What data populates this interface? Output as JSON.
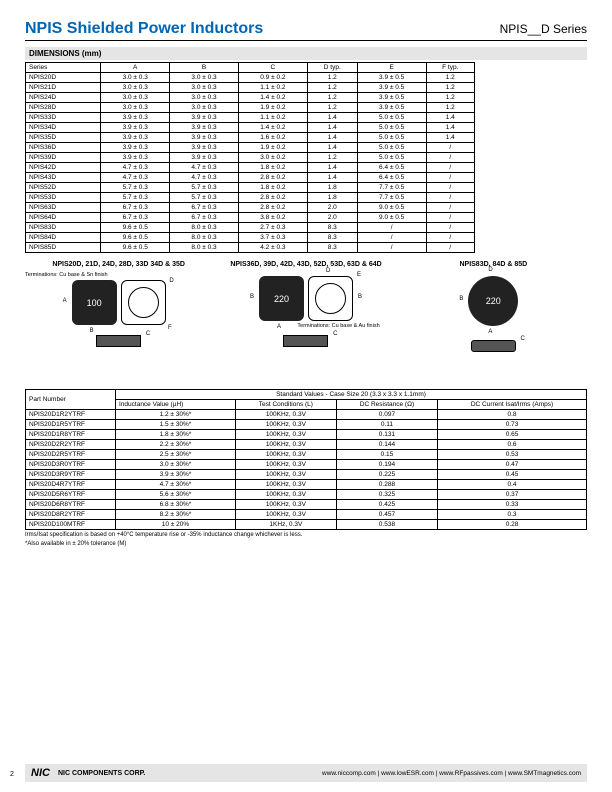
{
  "header": {
    "title": "NPIS Shielded Power Inductors",
    "series": "NPIS__D Series"
  },
  "dim_section": "DIMENSIONS (mm)",
  "dim_headers": [
    "Series",
    "A",
    "B",
    "C",
    "D typ.",
    "E",
    "F typ."
  ],
  "dim_rows": [
    [
      "NPIS20D",
      "3.0 ± 0.3",
      "3.0 ± 0.3",
      "0.9 ± 0.2",
      "1.2",
      "3.9 ± 0.5",
      "1.2"
    ],
    [
      "NPIS21D",
      "3.0 ± 0.3",
      "3.0 ± 0.3",
      "1.1 ± 0.2",
      "1.2",
      "3.9 ± 0.5",
      "1.2"
    ],
    [
      "NPIS24D",
      "3.0 ± 0.3",
      "3.0 ± 0.3",
      "1.4 ± 0.2",
      "1.2",
      "3.9 ± 0.5",
      "1.2"
    ],
    [
      "NPIS28D",
      "3.0 ± 0.3",
      "3.0 ± 0.3",
      "1.9 ± 0.2",
      "1.2",
      "3.9 ± 0.5",
      "1.2"
    ],
    [
      "NPIS33D",
      "3.9 ± 0.3",
      "3.9 ± 0.3",
      "1.1 ± 0.2",
      "1.4",
      "5.0 ± 0.5",
      "1.4"
    ],
    [
      "NPIS34D",
      "3.9 ± 0.3",
      "3.9 ± 0.3",
      "1.4 ± 0.2",
      "1.4",
      "5.0 ± 0.5",
      "1.4"
    ],
    [
      "NPIS35D",
      "3.9 ± 0.3",
      "3.9 ± 0.3",
      "1.6 ± 0.2",
      "1.4",
      "5.0 ± 0.5",
      "1.4"
    ],
    [
      "NPIS36D",
      "3.9 ± 0.3",
      "3.9 ± 0.3",
      "1.9 ± 0.2",
      "1.4",
      "5.0 ± 0.5",
      "/"
    ],
    [
      "NPIS39D",
      "3.9 ± 0.3",
      "3.9 ± 0.3",
      "3.0 ± 0.2",
      "1.2",
      "5.0 ± 0.5",
      "/"
    ],
    [
      "NPIS42D",
      "4.7 ± 0.3",
      "4.7 ± 0.3",
      "1.8 ± 0.2",
      "1.4",
      "6.4 ± 0.5",
      "/"
    ],
    [
      "NPIS43D",
      "4.7 ± 0.3",
      "4.7 ± 0.3",
      "2.8 ± 0.2",
      "1.4",
      "6.4 ± 0.5",
      "/"
    ],
    [
      "NPIS52D",
      "5.7 ± 0.3",
      "5.7 ± 0.3",
      "1.8 ± 0.2",
      "1.8",
      "7.7 ± 0.5",
      "/"
    ],
    [
      "NPIS53D",
      "5.7 ± 0.3",
      "5.7 ± 0.3",
      "2.8 ± 0.2",
      "1.8",
      "7.7 ± 0.5",
      "/"
    ],
    [
      "NPIS63D",
      "6.7 ± 0.3",
      "6.7 ± 0.3",
      "2.8 ± 0.2",
      "2.0",
      "9.0 ± 0.5",
      "/"
    ],
    [
      "NPIS64D",
      "6.7 ± 0.3",
      "6.7 ± 0.3",
      "3.8 ± 0.2",
      "2.0",
      "9.0 ± 0.5",
      "/"
    ],
    [
      "NPIS83D",
      "9.6 ± 0.5",
      "8.0 ± 0.3",
      "2.7 ± 0.3",
      "8.3",
      "/",
      "/"
    ],
    [
      "NPIS84D",
      "9.6 ± 0.5",
      "8.0 ± 0.3",
      "3.7 ± 0.3",
      "8.3",
      "/",
      "/"
    ],
    [
      "NPIS85D",
      "9.6 ± 0.5",
      "8.0 ± 0.3",
      "4.2 ± 0.3",
      "8.3",
      "/",
      "/"
    ]
  ],
  "diag1_title": "NPIS20D, 21D, 24D, 28D, 33D\n34D & 35D",
  "diag1_term": "Terminations:\nCu base & Sn finish",
  "diag1_mark": "100",
  "diag2_title": "NPIS36D, 39D, 42D, 43D, 52D,\n53D, 63D & 64D",
  "diag2_term": "Terminations:\nCu base & Au finish",
  "diag2_mark": "220",
  "diag3_title": "NPIS83D, 84D & 85D",
  "diag3_mark": "220",
  "values_header": "Standard Values - Case Size 20 (3.3 x 3.3 x 1.1mm)",
  "values_pn": "Part Number",
  "values_cols": [
    "Inductance Value (µH)",
    "Test Conditions (L)",
    "DC Resistance (Ω)",
    "DC Current Isat/Irms (Amps)"
  ],
  "values_rows": [
    [
      "NPIS20D1R2YTRF",
      "1.2 ± 30%*",
      "100KHz, 0.3V",
      "0.097",
      "0.8"
    ],
    [
      "NPIS20D1R5YTRF",
      "1.5 ± 30%*",
      "100KHz, 0.3V",
      "0.11",
      "0.73"
    ],
    [
      "NPIS20D1R8YTRF",
      "1.8 ± 30%*",
      "100KHz, 0.3V",
      "0.131",
      "0.65"
    ],
    [
      "NPIS20D2R2YTRF",
      "2.2 ± 30%*",
      "100KHz, 0.3V",
      "0.144",
      "0.6"
    ],
    [
      "NPIS20D2R5YTRF",
      "2.5 ± 30%*",
      "100KHz, 0.3V",
      "0.15",
      "0.53"
    ],
    [
      "NPIS20D3R0YTRF",
      "3.0 ± 30%*",
      "100KHz, 0.3V",
      "0.194",
      "0.47"
    ],
    [
      "NPIS20D3R9YTRF",
      "3.9 ± 30%*",
      "100KHz, 0.3V",
      "0.225",
      "0.45"
    ],
    [
      "NPIS20D4R7YTRF",
      "4.7 ± 30%*",
      "100KHz, 0.3V",
      "0.288",
      "0.4"
    ],
    [
      "NPIS20D5R6YTRF",
      "5.6 ± 30%*",
      "100KHz, 0.3V",
      "0.325",
      "0.37"
    ],
    [
      "NPIS20D6R8YTRF",
      "6.8 ± 30%*",
      "100KHz, 0.3V",
      "0.425",
      "0.33"
    ],
    [
      "NPIS20D8R2YTRF",
      "8.2 ± 30%*",
      "100KHz, 0.3V",
      "0.457",
      "0.3"
    ],
    [
      "NPIS20D100MTRF",
      "10 ± 20%",
      "1KHz, 0.3V",
      "0.538",
      "0.28"
    ]
  ],
  "footnote1": "Irms/Isat specification is based on +40°C temperature rise or -35% inductance change whichever is less.",
  "footnote2": "*Also available in ± 20% tolerance (M)",
  "footer": {
    "logo": "NIC",
    "corp": "NIC COMPONENTS CORP.",
    "links": "www.niccomp.com  |  www.lowESR.com  |  www.RFpassives.com  |  www.SMTmagnetics.com"
  },
  "page": "2"
}
